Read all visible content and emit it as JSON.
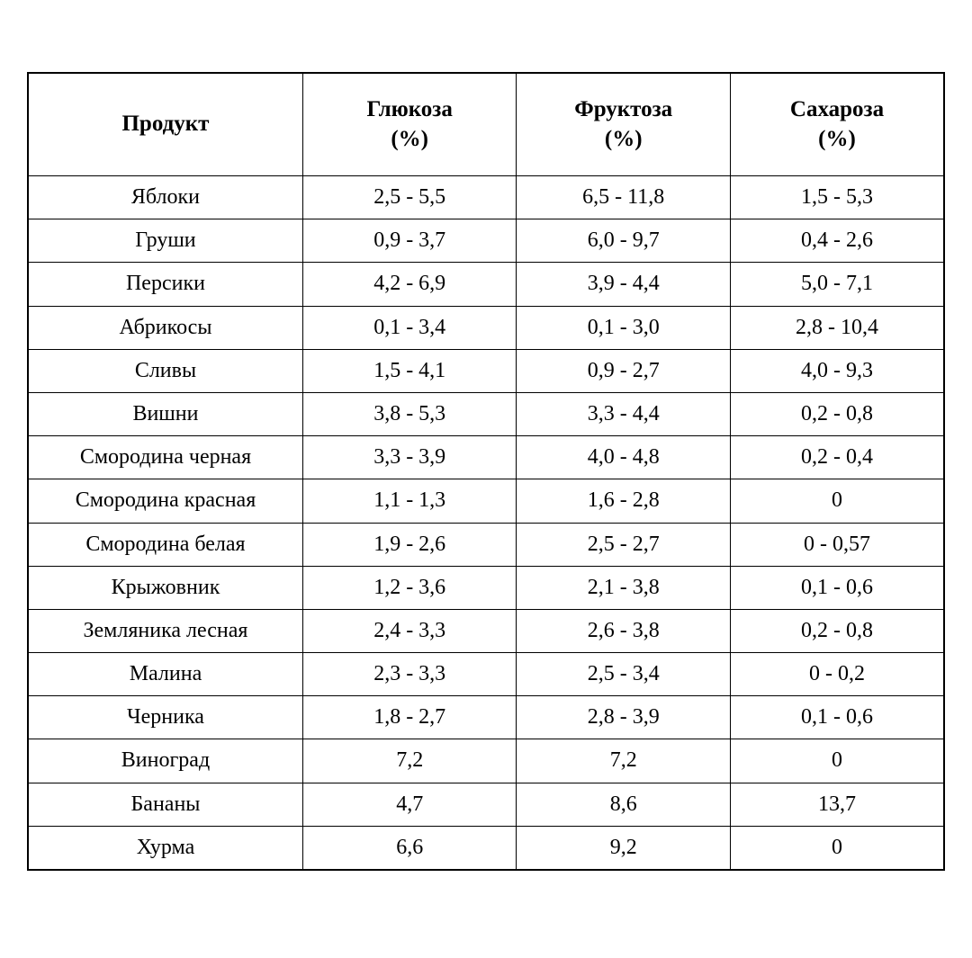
{
  "table": {
    "type": "table",
    "background_color": "#ffffff",
    "border_color": "#000000",
    "outer_border_width": 2.5,
    "inner_border_width": 1.5,
    "header_fontsize": 25,
    "cell_fontsize": 24,
    "font_family": "Times New Roman",
    "text_color": "#000000",
    "column_widths_pct": [
      30,
      23.33,
      23.33,
      23.33
    ],
    "columns": [
      {
        "label": "Продукт",
        "unit": ""
      },
      {
        "label": "Глюкоза",
        "unit": "(%)"
      },
      {
        "label": "Фруктоза",
        "unit": "(%)"
      },
      {
        "label": "Сахароза",
        "unit": "(%)"
      }
    ],
    "rows": [
      [
        "Яблоки",
        "2,5 - 5,5",
        "6,5 - 11,8",
        "1,5 - 5,3"
      ],
      [
        "Груши",
        "0,9 - 3,7",
        "6,0 - 9,7",
        "0,4 - 2,6"
      ],
      [
        "Персики",
        "4,2 - 6,9",
        "3,9 - 4,4",
        "5,0 - 7,1"
      ],
      [
        "Абрикосы",
        "0,1 - 3,4",
        "0,1 - 3,0",
        "2,8 - 10,4"
      ],
      [
        "Сливы",
        "1,5 - 4,1",
        "0,9 - 2,7",
        "4,0 - 9,3"
      ],
      [
        "Вишни",
        "3,8 - 5,3",
        "3,3 - 4,4",
        "0,2 - 0,8"
      ],
      [
        "Смородина черная",
        "3,3 - 3,9",
        "4,0 - 4,8",
        "0,2 - 0,4"
      ],
      [
        "Смородина красная",
        "1,1 - 1,3",
        "1,6 - 2,8",
        "0"
      ],
      [
        "Смородина белая",
        "1,9 - 2,6",
        "2,5 - 2,7",
        "0 - 0,57"
      ],
      [
        "Крыжовник",
        "1,2 - 3,6",
        "2,1 - 3,8",
        "0,1 - 0,6"
      ],
      [
        "Земляника лесная",
        "2,4 - 3,3",
        "2,6 - 3,8",
        "0,2 - 0,8"
      ],
      [
        "Малина",
        "2,3 - 3,3",
        "2,5 - 3,4",
        "0 - 0,2"
      ],
      [
        "Черника",
        "1,8 - 2,7",
        "2,8 - 3,9",
        "0,1 - 0,6"
      ],
      [
        "Виноград",
        "7,2",
        "7,2",
        "0"
      ],
      [
        "Бананы",
        "4,7",
        "8,6",
        "13,7"
      ],
      [
        "Хурма",
        "6,6",
        "9,2",
        "0"
      ]
    ]
  }
}
